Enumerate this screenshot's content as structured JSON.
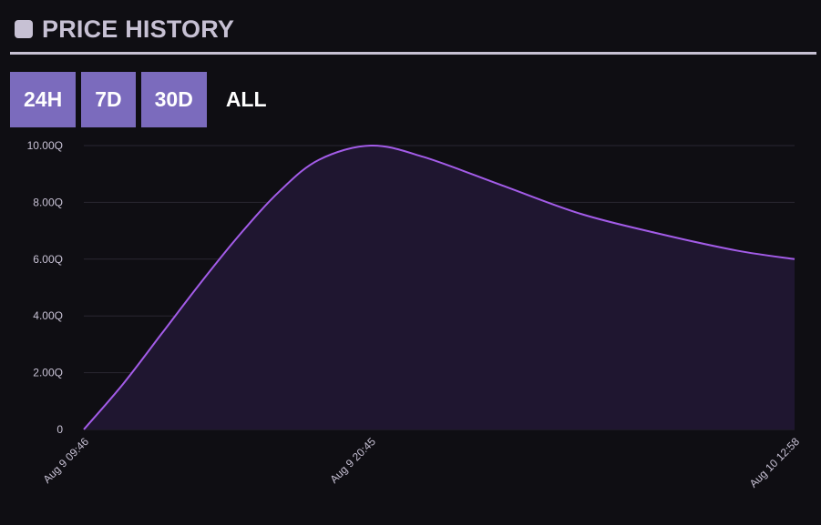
{
  "header": {
    "title": "PRICE HISTORY",
    "icon": "square-icon"
  },
  "range_tabs": [
    {
      "label": "24H",
      "active": true
    },
    {
      "label": "7D",
      "active": true
    },
    {
      "label": "30D",
      "active": true
    },
    {
      "label": "ALL",
      "active": false
    }
  ],
  "colors": {
    "background": "#0f0e13",
    "accent": "#7b6bbd",
    "line": "#a35ce8",
    "area": "#1f1630",
    "grid": "#2a2733",
    "text": "#c7c1d4"
  },
  "chart_data": {
    "type": "area",
    "x": [
      "Aug 9 09:46",
      "Aug 9 20:45",
      "Aug 10 12:58"
    ],
    "x_hours": [
      0,
      10.98,
      27.2
    ],
    "series": [
      {
        "values": [
          0,
          10.0,
          6.0
        ],
        "curve_samples": {
          "x_hours": [
            0,
            1.5,
            3,
            4.5,
            6,
            7.5,
            9,
            10.98,
            13,
            16,
            19,
            22,
            25,
            27.2
          ],
          "y": [
            0,
            1.6,
            3.4,
            5.2,
            6.9,
            8.4,
            9.5,
            10.0,
            9.6,
            8.6,
            7.6,
            6.9,
            6.3,
            6.0
          ]
        }
      }
    ],
    "y_ticks": [
      "0",
      "2.00Q",
      "4.00Q",
      "6.00Q",
      "8.00Q",
      "10.00Q"
    ],
    "ylim": [
      0,
      10
    ],
    "grid": true,
    "legend": "none",
    "title": "",
    "xlabel": "",
    "ylabel": ""
  }
}
